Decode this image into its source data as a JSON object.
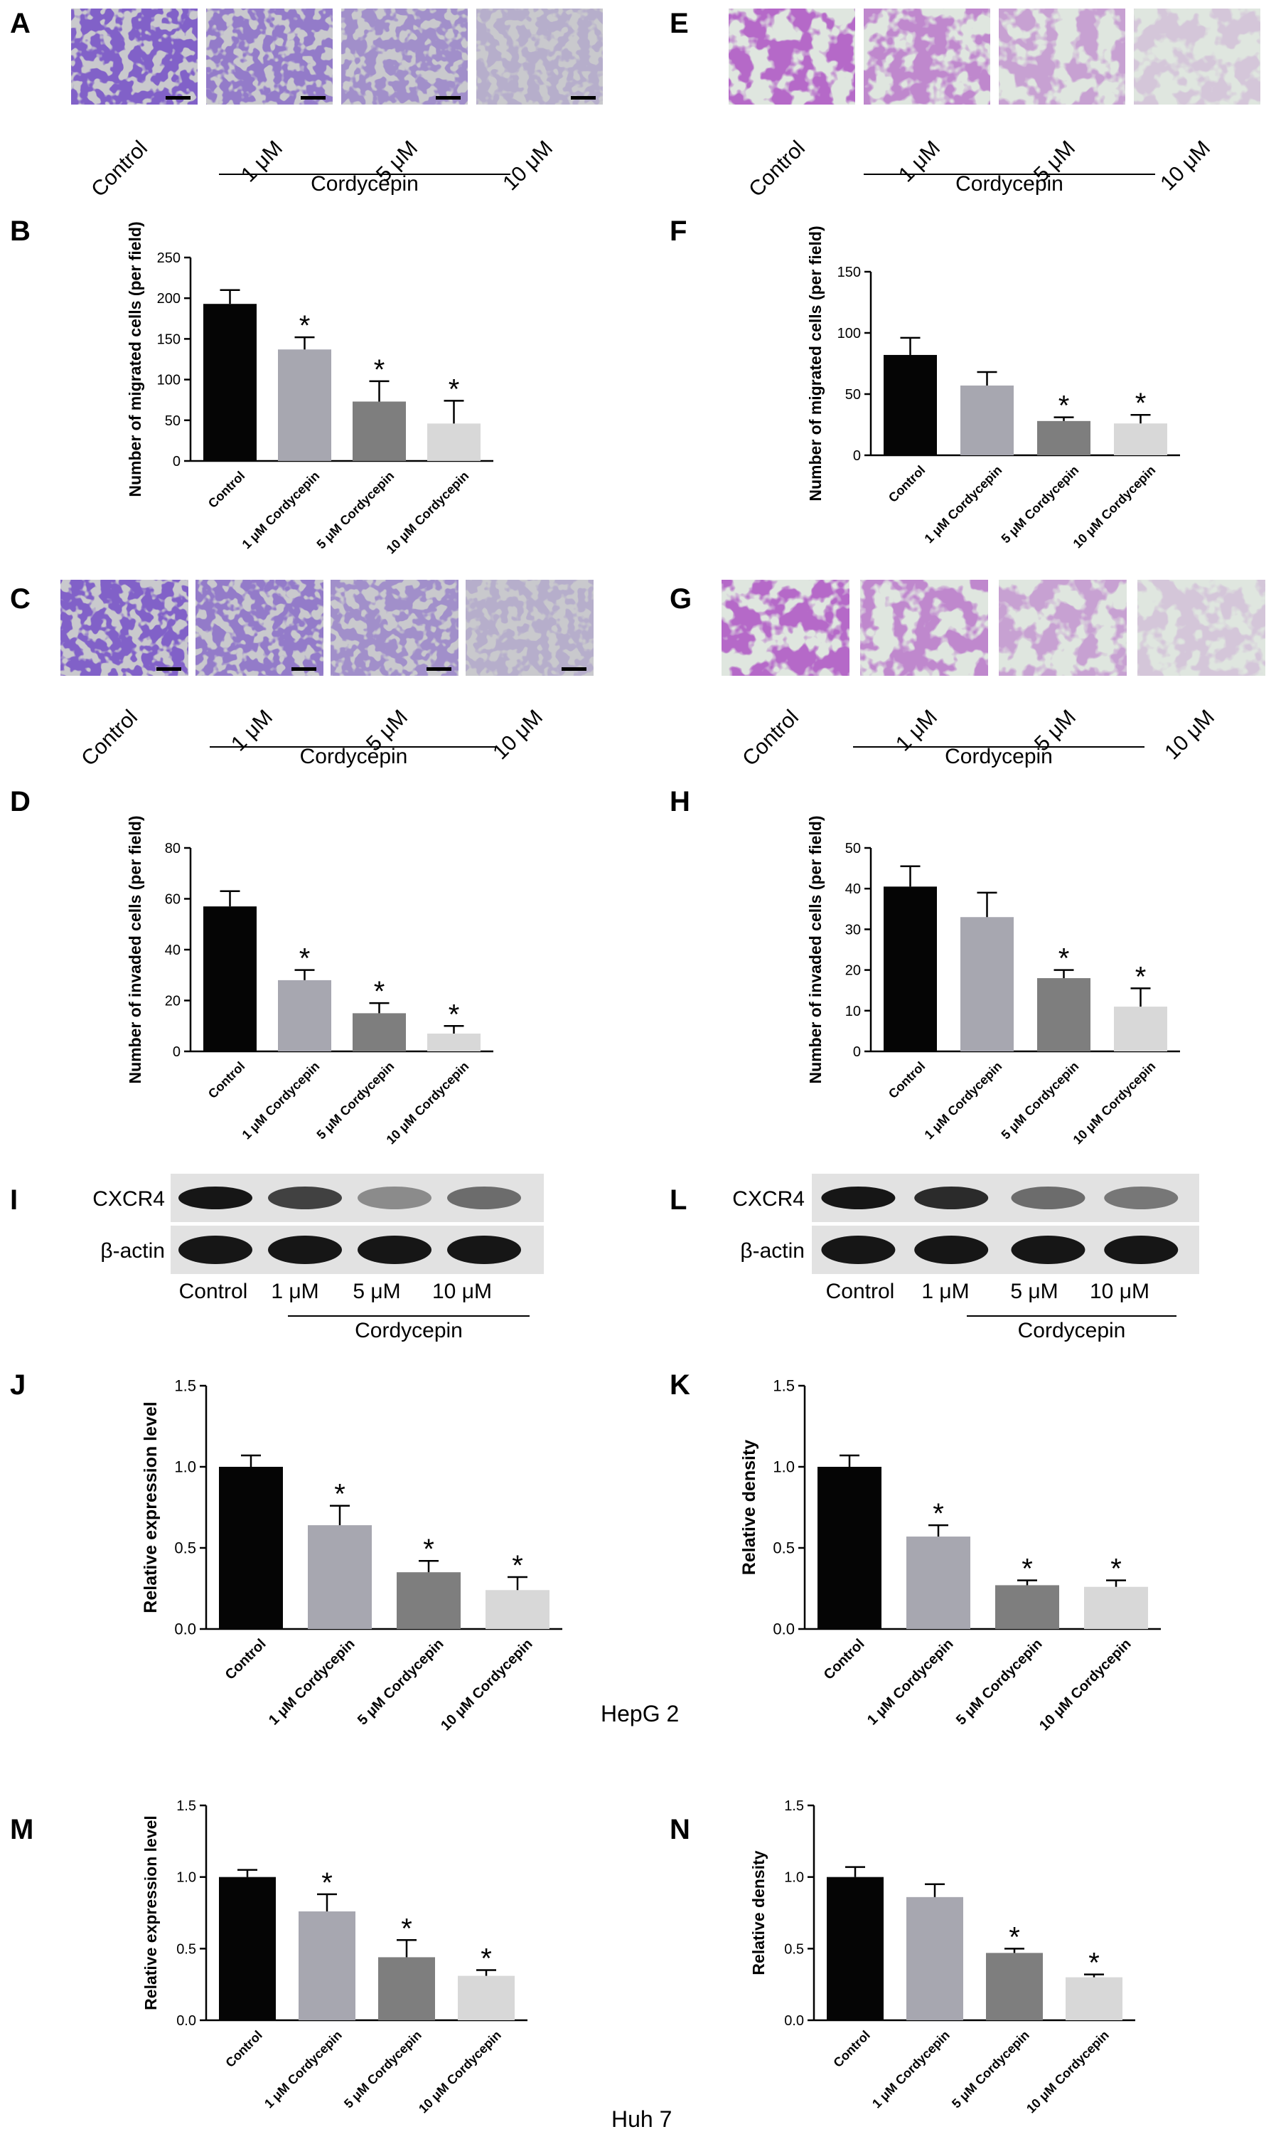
{
  "figure": {
    "panel_letters": {
      "A": "A",
      "B": "B",
      "C": "C",
      "D": "D",
      "E": "E",
      "F": "F",
      "G": "G",
      "H": "H",
      "I": "I",
      "J": "J",
      "K": "K",
      "L": "L",
      "M": "M",
      "N": "N"
    },
    "micrograph_rows": [
      {
        "panel": "A",
        "style": "crystal",
        "labels": [
          "Control",
          "1 μM",
          "5 μM",
          "10 μM"
        ],
        "group_label": "Cordycepin"
      },
      {
        "panel": "E",
        "style": "stain",
        "labels": [
          "Control",
          "1 μM",
          "5 μM",
          "10 μM"
        ],
        "group_label": "Cordycepin"
      },
      {
        "panel": "C",
        "style": "crystal",
        "labels": [
          "Control",
          "1 μM",
          "5 μM",
          "10 μM"
        ],
        "group_label": "Cordycepin"
      },
      {
        "panel": "G",
        "style": "stain",
        "labels": [
          "Control",
          "1 μM",
          "5 μM",
          "10 μM"
        ],
        "group_label": "Cordycepin"
      }
    ],
    "blots": [
      {
        "panel": "I",
        "rows": [
          "CXCR4",
          "β-actin"
        ],
        "lanes": [
          "Control",
          "1 μM",
          "5 μM",
          "10 μM"
        ],
        "group_label": "Cordycepin"
      },
      {
        "panel": "L",
        "rows": [
          "CXCR4",
          "β-actin"
        ],
        "lanes": [
          "Control",
          "1 μM",
          "5 μM",
          "10 μM"
        ],
        "group_label": "Cordycepin"
      }
    ],
    "cell_line_labels": [
      "HepG 2",
      "Huh 7"
    ],
    "significance_mark": "*",
    "colors": [
      "#050505",
      "#a7a7b0",
      "#7e7e7e",
      "#d8d8d8"
    ]
  },
  "chart_data": [
    {
      "panel": "B",
      "type": "bar",
      "ylabel": "Number of migrated cells (per field)",
      "categories": [
        "Control",
        "1 μM Cordycepin",
        "5 μM Cordycepin",
        "10 μM Cordycepin"
      ],
      "values": [
        193,
        137,
        73,
        46
      ],
      "errors": [
        17,
        15,
        25,
        28
      ],
      "significant": [
        false,
        true,
        true,
        true
      ],
      "ylim": [
        0,
        250
      ],
      "yticks": [
        0,
        50,
        100,
        150,
        200,
        250
      ],
      "tick_labels": [
        "0",
        "50",
        "100",
        "150",
        "200",
        "250"
      ]
    },
    {
      "panel": "F",
      "type": "bar",
      "ylabel": "Number of migrated cells (per field)",
      "categories": [
        "Control",
        "1 μM Cordycepin",
        "5 μM Cordycepin",
        "10 μM Cordycepin"
      ],
      "values": [
        82,
        57,
        28,
        26
      ],
      "errors": [
        14,
        11,
        3,
        7
      ],
      "significant": [
        false,
        false,
        true,
        true
      ],
      "ylim": [
        0,
        150
      ],
      "yticks": [
        0,
        50,
        100,
        150
      ],
      "tick_labels": [
        "0",
        "50",
        "100",
        "150"
      ]
    },
    {
      "panel": "D",
      "type": "bar",
      "ylabel": "Number of invaded cells (per field)",
      "categories": [
        "Control",
        "1 μM Cordycepin",
        "5 μM Cordycepin",
        "10 μM Cordycepin"
      ],
      "values": [
        57,
        28,
        15,
        7
      ],
      "errors": [
        6,
        4,
        4,
        3
      ],
      "significant": [
        false,
        true,
        true,
        true
      ],
      "ylim": [
        0,
        80
      ],
      "yticks": [
        0,
        20,
        40,
        60,
        80
      ],
      "tick_labels": [
        "0",
        "20",
        "40",
        "60",
        "80"
      ]
    },
    {
      "panel": "H",
      "type": "bar",
      "ylabel": "Number of invaded cells (per field)",
      "categories": [
        "Control",
        "1 μM Cordycepin",
        "5 μM Cordycepin",
        "10 μM Cordycepin"
      ],
      "values": [
        40.5,
        33,
        18,
        11
      ],
      "errors": [
        5,
        6,
        2,
        4.5
      ],
      "significant": [
        false,
        false,
        true,
        true
      ],
      "ylim": [
        0,
        50
      ],
      "yticks": [
        0,
        10,
        20,
        30,
        40,
        50
      ],
      "tick_labels": [
        "0",
        "10",
        "20",
        "30",
        "40",
        "50"
      ]
    },
    {
      "panel": "J",
      "type": "bar",
      "ylabel": "Relative expression level",
      "categories": [
        "Control",
        "1 μM Cordycepin",
        "5 μM Cordycepin",
        "10 μM Cordycepin"
      ],
      "values": [
        1.0,
        0.64,
        0.35,
        0.24
      ],
      "errors": [
        0.07,
        0.12,
        0.07,
        0.08
      ],
      "significant": [
        false,
        true,
        true,
        true
      ],
      "ylim": [
        0,
        1.5
      ],
      "yticks": [
        0,
        0.5,
        1.0,
        1.5
      ],
      "tick_labels": [
        "0.0",
        "0.5",
        "1.0",
        "1.5"
      ]
    },
    {
      "panel": "K",
      "type": "bar",
      "ylabel": "Relative density",
      "categories": [
        "Control",
        "1 μM Cordycepin",
        "5 μM Cordycepin",
        "10 μM Cordycepin"
      ],
      "values": [
        1.0,
        0.57,
        0.27,
        0.26
      ],
      "errors": [
        0.07,
        0.07,
        0.03,
        0.04
      ],
      "significant": [
        false,
        true,
        true,
        true
      ],
      "ylim": [
        0,
        1.5
      ],
      "yticks": [
        0,
        0.5,
        1.0,
        1.5
      ],
      "tick_labels": [
        "0.0",
        "0.5",
        "1.0",
        "1.5"
      ]
    },
    {
      "panel": "M",
      "type": "bar",
      "ylabel": "Relative expression level",
      "categories": [
        "Control",
        "1 μM Cordycepin",
        "5 μM Cordycepin",
        "10 μM Cordycepin"
      ],
      "values": [
        1.0,
        0.76,
        0.44,
        0.31
      ],
      "errors": [
        0.05,
        0.12,
        0.12,
        0.04
      ],
      "significant": [
        false,
        true,
        true,
        true
      ],
      "ylim": [
        0,
        1.5
      ],
      "yticks": [
        0,
        0.5,
        1.0,
        1.5
      ],
      "tick_labels": [
        "0.0",
        "0.5",
        "1.0",
        "1.5"
      ]
    },
    {
      "panel": "N",
      "type": "bar",
      "ylabel": "Relative density",
      "categories": [
        "Control",
        "1 μM Cordycepin",
        "5 μM Cordycepin",
        "10 μM Cordycepin"
      ],
      "values": [
        1.0,
        0.86,
        0.47,
        0.3
      ],
      "errors": [
        0.07,
        0.09,
        0.03,
        0.02
      ],
      "significant": [
        false,
        false,
        true,
        true
      ],
      "ylim": [
        0,
        1.5
      ],
      "yticks": [
        0,
        0.5,
        1.0,
        1.5
      ],
      "tick_labels": [
        "0.0",
        "0.5",
        "1.0",
        "1.5"
      ]
    }
  ]
}
